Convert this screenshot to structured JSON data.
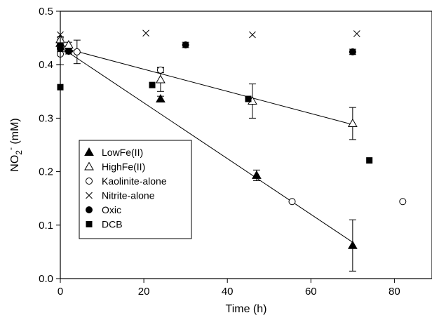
{
  "chart_data": {
    "type": "scatter",
    "xlabel": "Time (h)",
    "ylabel": {
      "main": "NO",
      "sub": "2",
      "sup": "-",
      "unit": " (mM)"
    },
    "xlim": [
      0,
      89
    ],
    "ylim": [
      0,
      0.5
    ],
    "x_ticks": [
      0,
      20,
      40,
      60,
      80
    ],
    "y_ticks": [
      0.0,
      0.1,
      0.2,
      0.3,
      0.4,
      0.5
    ],
    "x_tick_labels": [
      "0",
      "20",
      "40",
      "60",
      "80"
    ],
    "y_tick_labels": [
      "0.0",
      "0.1",
      "0.2",
      "0.3",
      "0.4",
      "0.5"
    ],
    "grid": false,
    "legend_position": "lower-left",
    "series": [
      {
        "name": "LowFe(II)",
        "marker": "triangle-filled",
        "points": [
          {
            "x": 0,
            "y": 0.44,
            "err": 0.008
          },
          {
            "x": 2,
            "y": 0.43,
            "err": 0.005
          },
          {
            "x": 24,
            "y": 0.336,
            "err": 0.005
          },
          {
            "x": 47,
            "y": 0.193,
            "err": 0.01
          },
          {
            "x": 70,
            "y": 0.062,
            "err": 0.048
          }
        ]
      },
      {
        "name": "HighFe(II)",
        "marker": "triangle-open",
        "points": [
          {
            "x": 0,
            "y": 0.447,
            "err": 0.005
          },
          {
            "x": 2,
            "y": 0.437,
            "err": 0.005
          },
          {
            "x": 24,
            "y": 0.372,
            "err": 0.022
          },
          {
            "x": 46,
            "y": 0.332,
            "err": 0.032
          },
          {
            "x": 70,
            "y": 0.29,
            "err": 0.03
          }
        ]
      },
      {
        "name": "Kaolinite-alone",
        "marker": "circle-open",
        "points": [
          {
            "x": 0,
            "y": 0.42,
            "err": 0.02
          },
          {
            "x": 4,
            "y": 0.424,
            "err": 0.022
          },
          {
            "x": 24,
            "y": 0.39,
            "err": 0.005
          },
          {
            "x": 55.5,
            "y": 0.144,
            "err": 0
          },
          {
            "x": 82,
            "y": 0.144,
            "err": 0
          }
        ]
      },
      {
        "name": "Nitrite-alone",
        "marker": "cross",
        "points": [
          {
            "x": 0,
            "y": 0.456,
            "err": 0
          },
          {
            "x": 20.5,
            "y": 0.459,
            "err": 0
          },
          {
            "x": 46,
            "y": 0.456,
            "err": 0
          },
          {
            "x": 71,
            "y": 0.458,
            "err": 0
          }
        ]
      },
      {
        "name": "Oxic",
        "marker": "circle-filled",
        "points": [
          {
            "x": 0,
            "y": 0.43,
            "err": 0.005
          },
          {
            "x": 2,
            "y": 0.425,
            "err": 0.005
          },
          {
            "x": 30,
            "y": 0.437,
            "err": 0.005
          },
          {
            "x": 70,
            "y": 0.424,
            "err": 0.005
          }
        ]
      },
      {
        "name": "DCB",
        "marker": "square-filled",
        "points": [
          {
            "x": 0,
            "y": 0.358,
            "err": 0
          },
          {
            "x": 22,
            "y": 0.362,
            "err": 0
          },
          {
            "x": 45,
            "y": 0.336,
            "err": 0
          },
          {
            "x": 74,
            "y": 0.221,
            "err": 0
          }
        ]
      }
    ],
    "fit_lines": [
      {
        "series": "LowFe(II)",
        "from": [
          0,
          0.433
        ],
        "to": [
          70,
          0.068
        ]
      },
      {
        "series": "HighFe(II)",
        "from": [
          0,
          0.433
        ],
        "to": [
          70,
          0.288
        ]
      }
    ]
  }
}
